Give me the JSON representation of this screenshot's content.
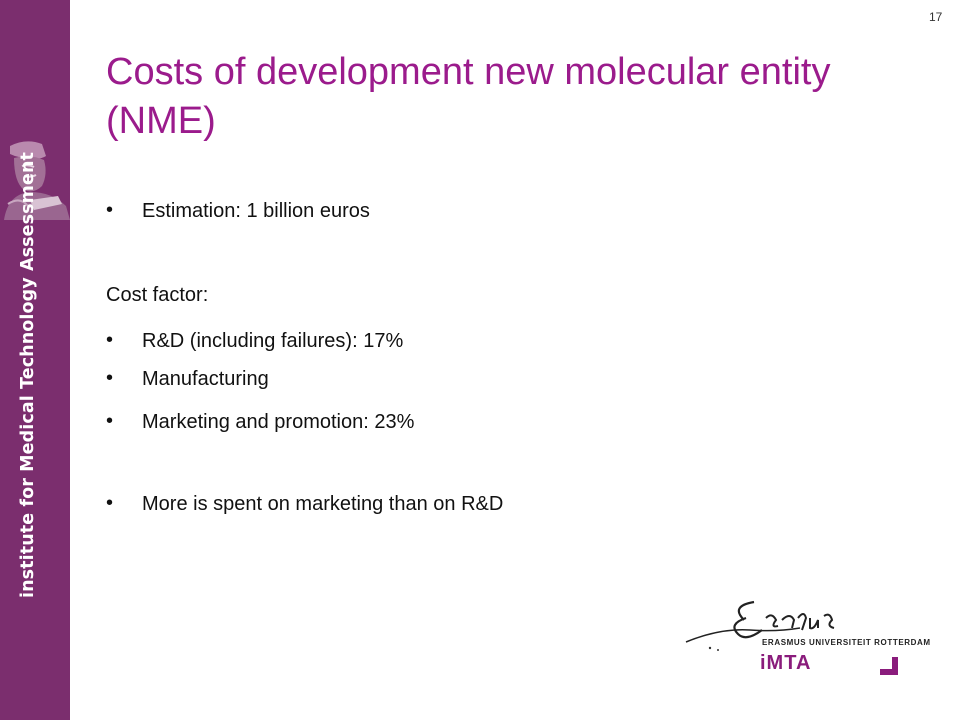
{
  "sidebar": {
    "text": "institute for Medical Technology Assessment",
    "color": "#7b2e6e"
  },
  "slide": {
    "number": "17",
    "title": "Costs of development new molecular entity (NME)",
    "title_color": "#9b1b8c",
    "bullet_char": "•",
    "estimation": "Estimation: 1 billion euros",
    "cost_factor_heading": "Cost factor:",
    "cost_factors": [
      "R&D (including failures): 17%",
      "Manufacturing",
      "Marketing and promotion: 23%"
    ],
    "conclusion": "More is spent on marketing than on R&D"
  },
  "logo": {
    "signature": "Erasmus",
    "university": "ERASMUS UNIVERSITEIT ROTTERDAM",
    "imta": "iMTA",
    "imta_color": "#8a1c7c"
  }
}
